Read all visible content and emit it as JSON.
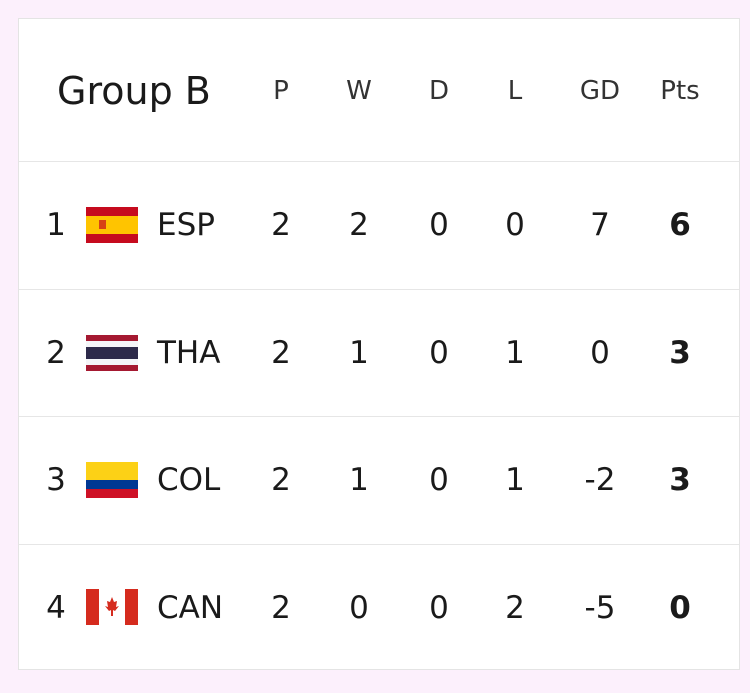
{
  "header": {
    "title": "Group B",
    "columns": [
      "P",
      "W",
      "D",
      "L",
      "GD",
      "Pts"
    ]
  },
  "rows": [
    {
      "rank": 1,
      "team": "ESP",
      "stats": [
        2,
        2,
        0,
        0,
        7,
        6
      ]
    },
    {
      "rank": 2,
      "team": "THA",
      "stats": [
        2,
        1,
        0,
        1,
        0,
        3
      ]
    },
    {
      "rank": 3,
      "team": "COL",
      "stats": [
        2,
        1,
        0,
        1,
        -2,
        3
      ]
    },
    {
      "rank": 4,
      "team": "CAN",
      "stats": [
        2,
        0,
        0,
        2,
        -5,
        0
      ]
    }
  ]
}
